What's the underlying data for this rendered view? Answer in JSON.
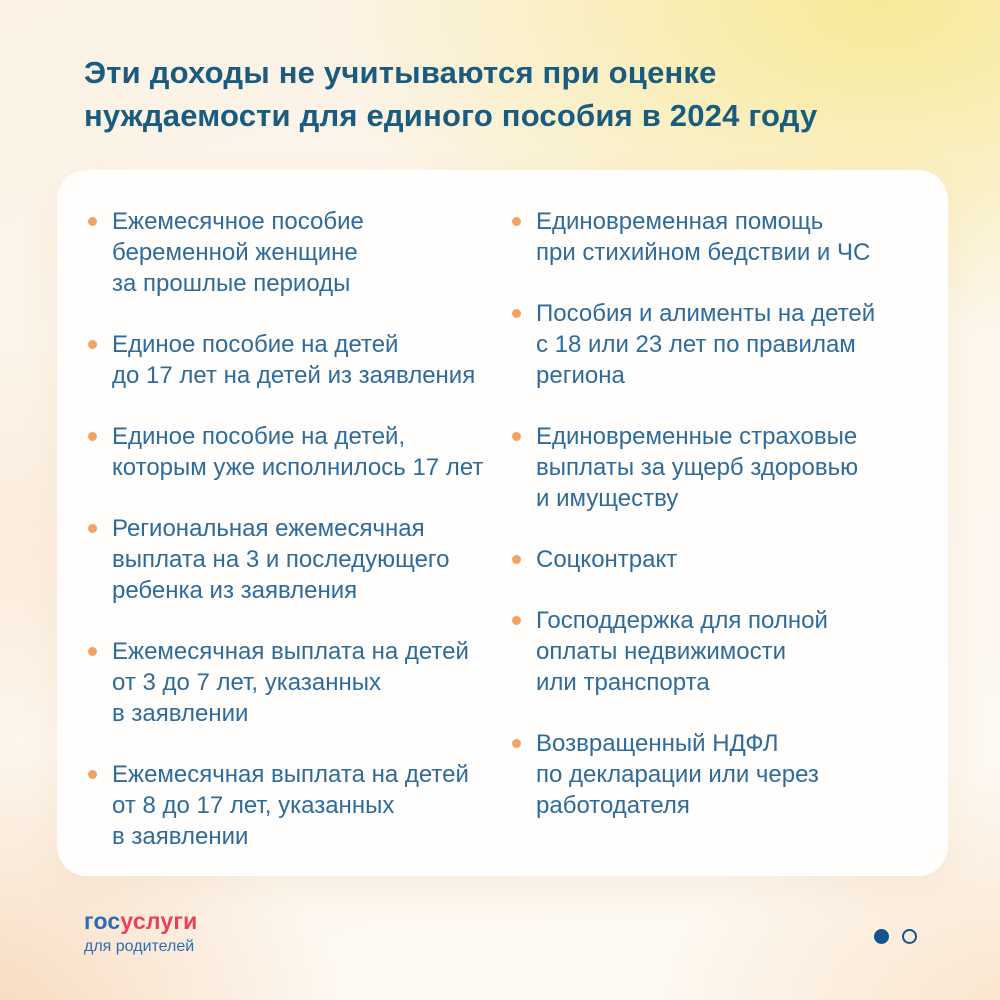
{
  "header": {
    "title": "Эти доходы не учитываются при оценке\nнуждаемости для единого пособия в 2024 году"
  },
  "card": {
    "left_column": [
      "Ежемесячное пособие\nбеременной женщине\nза прошлые периоды",
      "Единое пособие на детей\nдо 17 лет на детей из заявления",
      "Единое пособие на детей,\nкоторым уже исполнилось 17 лет",
      "Региональная ежемесячная\nвыплата на 3 и последующего\nребенка из заявления",
      "Ежемесячная выплата на детей\nот 3 до 7 лет, указанных\nв заявлении",
      "Ежемесячная выплата на детей\nот 8 до 17 лет, указанных\nв заявлении"
    ],
    "right_column": [
      "Единовременная помощь\nпри стихийном бедствии и ЧС",
      "Пособия и алименты на детей\nс 18 или 23 лет по правилам\nрегиона",
      "Единовременные страховые\nвыплаты за ущерб здоровью\nи имуществу",
      "Соцконтракт",
      "Господдержка для полной\nоплаты недвижимости\nили транспорта",
      "Возвращенный НДФЛ\nпо декларации или через\nработодателя"
    ]
  },
  "footer": {
    "logo_blue": "гос",
    "logo_red": "услуги",
    "logo_subtitle": "для родителей",
    "pagination": {
      "current_page": 1,
      "total_pages": 2
    }
  },
  "colors": {
    "title_text": "#1a5b80",
    "item_text": "#2e6b9d",
    "bullet": "#f2a263",
    "logo_blue": "#2d6cb5",
    "logo_red": "#ee3f58",
    "pagination_dot": "#15538e",
    "card_background": "#fffefc"
  }
}
